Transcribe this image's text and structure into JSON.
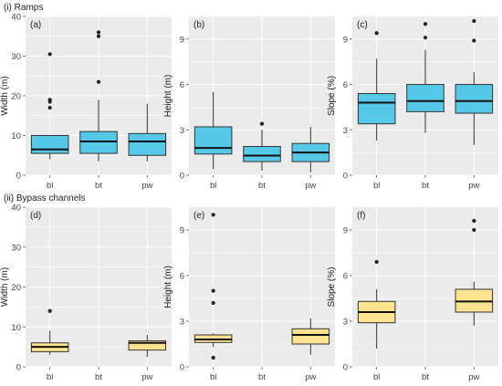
{
  "sections": [
    {
      "title": "(i) Ramps"
    },
    {
      "title": "(ii) Bypass channels"
    }
  ],
  "colors": {
    "ramps_fill": "#56c8e8",
    "bypass_fill": "#fbe38f",
    "panel_bg": "#ebebeb",
    "grid": "#ffffff",
    "line": "#333333"
  },
  "chart_data": [
    {
      "type": "boxplot",
      "tag": "(a)",
      "section": 0,
      "ylabel": "Width (m)",
      "ylim": [
        0,
        40
      ],
      "yticks": [
        0,
        10,
        20,
        30,
        40
      ],
      "categories": [
        "bl",
        "bt",
        "pw"
      ],
      "fill": "ramps_fill",
      "boxes": [
        {
          "category": "bl",
          "min": 4,
          "q1": 5.5,
          "median": 6.5,
          "q3": 10,
          "max": 10,
          "outliers": [
            17,
            18.5,
            19,
            30.5
          ]
        },
        {
          "category": "bt",
          "min": 3.5,
          "q1": 5.5,
          "median": 8.5,
          "q3": 11,
          "max": 19,
          "outliers": [
            23.5,
            35,
            36
          ]
        },
        {
          "category": "pw",
          "min": 3.5,
          "q1": 5,
          "median": 8.5,
          "q3": 10.5,
          "max": 18,
          "outliers": []
        }
      ]
    },
    {
      "type": "boxplot",
      "tag": "(b)",
      "section": 0,
      "ylabel": "Height (m)",
      "ylim": [
        0,
        10.5
      ],
      "yticks": [
        0,
        3,
        6,
        9
      ],
      "categories": [
        "bl",
        "bt",
        "pw"
      ],
      "fill": "ramps_fill",
      "boxes": [
        {
          "category": "bl",
          "min": 0.4,
          "q1": 1.4,
          "median": 1.8,
          "q3": 3.2,
          "max": 5.5,
          "outliers": []
        },
        {
          "category": "bt",
          "min": 0.3,
          "q1": 0.9,
          "median": 1.3,
          "q3": 1.9,
          "max": 3.0,
          "outliers": [
            3.4
          ]
        },
        {
          "category": "pw",
          "min": 0.2,
          "q1": 0.9,
          "median": 1.5,
          "q3": 2.1,
          "max": 3.2,
          "outliers": []
        }
      ]
    },
    {
      "type": "boxplot",
      "tag": "(c)",
      "section": 0,
      "ylabel": "Slope (%)",
      "ylim": [
        0,
        10.5
      ],
      "yticks": [
        0,
        3,
        6,
        9
      ],
      "categories": [
        "bl",
        "bt",
        "pw"
      ],
      "fill": "ramps_fill",
      "boxes": [
        {
          "category": "bl",
          "min": 2.3,
          "q1": 3.4,
          "median": 4.8,
          "q3": 5.4,
          "max": 7.7,
          "outliers": [
            9.4
          ]
        },
        {
          "category": "bt",
          "min": 2.8,
          "q1": 4.2,
          "median": 4.9,
          "q3": 6.0,
          "max": 8.3,
          "outliers": [
            9.1,
            10.0
          ]
        },
        {
          "category": "pw",
          "min": 2.0,
          "q1": 4.1,
          "median": 4.9,
          "q3": 6.0,
          "max": 6.8,
          "outliers": [
            8.9,
            10.2
          ]
        }
      ]
    },
    {
      "type": "boxplot",
      "tag": "(d)",
      "section": 1,
      "ylabel": "Width (m)",
      "ylim": [
        0,
        40
      ],
      "yticks": [
        0,
        10,
        20,
        30,
        40
      ],
      "categories": [
        "bl",
        "bt",
        "pw"
      ],
      "fill": "bypass_fill",
      "boxes": [
        {
          "category": "bl",
          "min": 3,
          "q1": 3.8,
          "median": 5,
          "q3": 6,
          "max": 9,
          "outliers": [
            14
          ]
        },
        {
          "category": "pw",
          "min": 2.5,
          "q1": 4.2,
          "median": 6,
          "q3": 6.5,
          "max": 8,
          "outliers": []
        }
      ]
    },
    {
      "type": "boxplot",
      "tag": "(e)",
      "section": 1,
      "ylabel": "Height (m)",
      "ylim": [
        0,
        10.5
      ],
      "yticks": [
        0,
        3,
        6,
        9
      ],
      "categories": [
        "bl",
        "bt",
        "pw"
      ],
      "fill": "bypass_fill",
      "boxes": [
        {
          "category": "bl",
          "min": 1.3,
          "q1": 1.6,
          "median": 1.8,
          "q3": 2.1,
          "max": 2.2,
          "outliers": [
            0.6,
            4.2,
            5.0,
            10.0
          ]
        },
        {
          "category": "pw",
          "min": 0.8,
          "q1": 1.5,
          "median": 2.1,
          "q3": 2.5,
          "max": 3.2,
          "outliers": []
        }
      ]
    },
    {
      "type": "boxplot",
      "tag": "(f)",
      "section": 1,
      "ylabel": "Slope (%)",
      "ylim": [
        0,
        10.5
      ],
      "yticks": [
        0,
        3,
        6,
        9
      ],
      "categories": [
        "bl",
        "bt",
        "pw"
      ],
      "fill": "bypass_fill",
      "boxes": [
        {
          "category": "bl",
          "min": 1.2,
          "q1": 2.9,
          "median": 3.6,
          "q3": 4.3,
          "max": 5.1,
          "outliers": [
            6.9
          ]
        },
        {
          "category": "pw",
          "min": 2.7,
          "q1": 3.6,
          "median": 4.3,
          "q3": 5.1,
          "max": 5.6,
          "outliers": [
            9.0,
            9.6
          ]
        }
      ]
    }
  ]
}
